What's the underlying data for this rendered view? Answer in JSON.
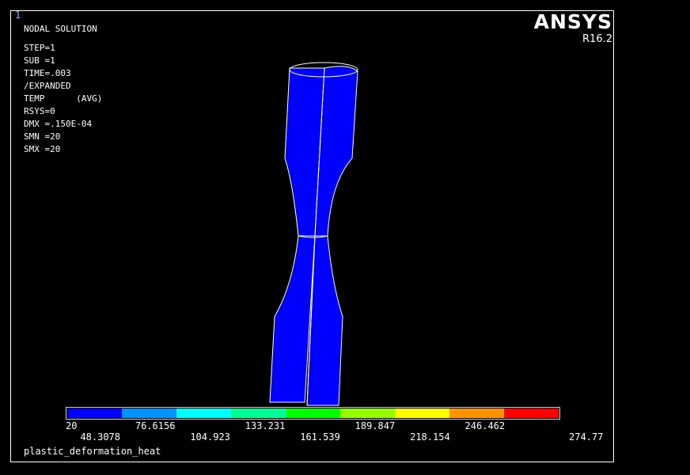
{
  "window_number": "1",
  "header_lines": [
    "NODAL SOLUTION",
    "STEP=1",
    "SUB =1",
    "TIME=.003",
    "/EXPANDED",
    "TEMP      (AVG)",
    "RSYS=0",
    "DMX =.150E-04",
    "SMN =20",
    "SMX =20"
  ],
  "brand": {
    "name": "ANSYS",
    "version": "R16.2"
  },
  "model_color": "#0000ff",
  "legend": {
    "colors": [
      "#0000ff",
      "#0094ff",
      "#00ffff",
      "#00ff94",
      "#00ff00",
      "#94ff00",
      "#ffff00",
      "#ff9400",
      "#ff0000"
    ],
    "top_ticks": [
      "20",
      "76.6156",
      "133.231",
      "189.847",
      "246.462"
    ],
    "bottom_ticks": [
      "48.3078",
      "104.923",
      "161.539",
      "218.154",
      "274.77"
    ]
  },
  "result_label": "plastic_deformation_heat"
}
